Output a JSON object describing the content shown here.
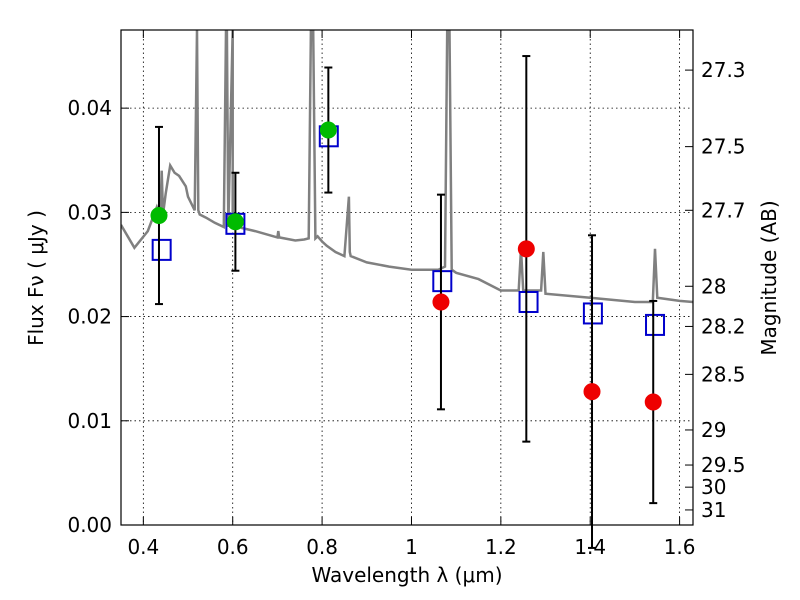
{
  "chart_data": {
    "type": "scatter",
    "xlabel": "Wavelength  λ (μm)",
    "ylabel": "Flux  Fν  ( μJy )",
    "y2label": "Magnitude (AB)",
    "xlim": [
      0.35,
      1.63
    ],
    "ylim": [
      0.0,
      0.0475
    ],
    "grid": true,
    "x_ticks": [
      {
        "v": 0.4,
        "label": "0.4"
      },
      {
        "v": 0.6,
        "label": "0.6"
      },
      {
        "v": 0.8,
        "label": "0.8"
      },
      {
        "v": 1.0,
        "label": "1"
      },
      {
        "v": 1.2,
        "label": "1.2"
      },
      {
        "v": 1.4,
        "label": "1.4"
      },
      {
        "v": 1.6,
        "label": "1.6"
      }
    ],
    "y_ticks": [
      {
        "v": 0.0,
        "label": "0.00"
      },
      {
        "v": 0.01,
        "label": "0.01"
      },
      {
        "v": 0.02,
        "label": "0.02"
      },
      {
        "v": 0.03,
        "label": "0.03"
      },
      {
        "v": 0.04,
        "label": "0.04"
      }
    ],
    "mag_ticks": [
      {
        "mag": 27.3,
        "label": "27.3"
      },
      {
        "mag": 27.5,
        "label": "27.5"
      },
      {
        "mag": 27.7,
        "label": "27.7"
      },
      {
        "mag": 28.0,
        "label": "28"
      },
      {
        "mag": 28.2,
        "label": "28.2"
      },
      {
        "mag": 28.5,
        "label": "28.5"
      },
      {
        "mag": 29.0,
        "label": "29"
      },
      {
        "mag": 29.5,
        "label": "29.5"
      },
      {
        "mag": 30.0,
        "label": "30"
      },
      {
        "mag": 31.0,
        "label": "31"
      }
    ],
    "colors": {
      "optical": "#00bb00",
      "nir": "#ee0000",
      "model_box": "#0000cc",
      "spectrum": "#808080",
      "errorbar": "#000000"
    },
    "series": [
      {
        "kind": "observed-optical",
        "x": [
          0.435,
          0.606,
          0.814
        ],
        "y": [
          0.0297,
          0.0291,
          0.0379
        ],
        "yerr": [
          0.0085,
          0.0047,
          0.006
        ]
      },
      {
        "kind": "observed-nir",
        "x": [
          1.066,
          1.257,
          1.404,
          1.541
        ],
        "y": [
          0.0214,
          0.0265,
          0.0128,
          0.0118
        ],
        "yerr": [
          0.0103,
          0.0185,
          0.015,
          0.0097
        ]
      },
      {
        "kind": "model-photometry",
        "x": [
          0.441,
          0.606,
          0.815,
          1.069,
          1.262,
          1.406,
          1.545
        ],
        "y": [
          0.0264,
          0.0289,
          0.0373,
          0.0234,
          0.0214,
          0.0203,
          0.0192
        ]
      }
    ],
    "model_spectrum": {
      "x": [
        0.35,
        0.38,
        0.41,
        0.43,
        0.438,
        0.441,
        0.444,
        0.45,
        0.46,
        0.47,
        0.48,
        0.495,
        0.5,
        0.515,
        0.52,
        0.523,
        0.526,
        0.54,
        0.56,
        0.58,
        0.585,
        0.587,
        0.59,
        0.6,
        0.6,
        0.61,
        0.62,
        0.65,
        0.7,
        0.702,
        0.704,
        0.74,
        0.76,
        0.77,
        0.775,
        0.78,
        0.785,
        0.79,
        0.8,
        0.81,
        0.83,
        0.85,
        0.86,
        0.862,
        0.864,
        0.9,
        0.95,
        1.0,
        1.03,
        1.06,
        1.075,
        1.08,
        1.085,
        1.09,
        1.1,
        1.15,
        1.2,
        1.24,
        1.245,
        1.25,
        1.29,
        1.295,
        1.3,
        1.4,
        1.5,
        1.54,
        1.545,
        1.55,
        1.6,
        1.63
      ],
      "y": [
        0.0288,
        0.0266,
        0.0282,
        0.0305,
        0.0295,
        0.034,
        0.0298,
        0.0318,
        0.0345,
        0.0338,
        0.0335,
        0.0325,
        0.0315,
        0.0302,
        0.0475,
        0.0302,
        0.0298,
        0.0295,
        0.029,
        0.0286,
        0.0475,
        0.0475,
        0.0286,
        0.0475,
        0.029,
        0.0288,
        0.0285,
        0.0282,
        0.0276,
        0.0282,
        0.0276,
        0.0273,
        0.0274,
        0.0275,
        0.0475,
        0.0475,
        0.0275,
        0.0277,
        0.0272,
        0.0268,
        0.0262,
        0.0258,
        0.0315,
        0.0262,
        0.0258,
        0.0252,
        0.0248,
        0.0245,
        0.0245,
        0.0245,
        0.0248,
        0.0475,
        0.0475,
        0.0245,
        0.0242,
        0.0236,
        0.0225,
        0.0225,
        0.0265,
        0.0225,
        0.0225,
        0.0262,
        0.0222,
        0.0218,
        0.0214,
        0.0214,
        0.0265,
        0.0218,
        0.0215,
        0.0214
      ]
    }
  }
}
